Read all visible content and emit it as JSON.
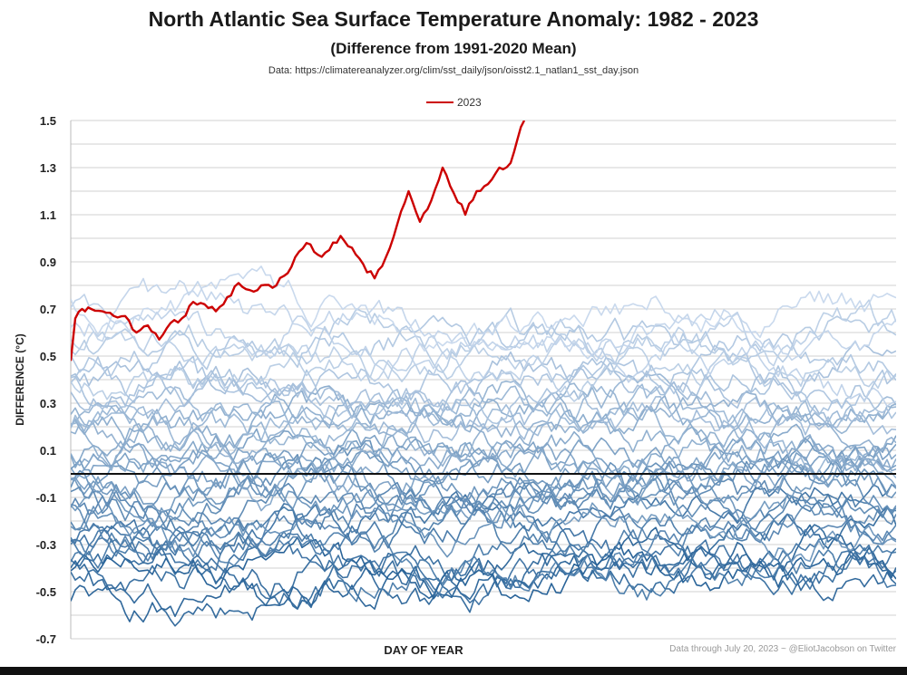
{
  "chart_data": {
    "type": "line",
    "title": "North Atlantic Sea Surface Temperature Anomaly: 1982 - 2023",
    "subtitle": "(Difference from 1991-2020 Mean)",
    "source": "Data: https://climatereanalyzer.org/clim/sst_daily/json/oisst2.1_natlan1_sst_day.json",
    "xlabel": "DAY OF YEAR",
    "ylabel": "DIFFERENCE (°C)",
    "xlim": [
      1,
      365
    ],
    "ylim": [
      -0.7,
      1.5
    ],
    "yticks": [
      "1.5",
      "1.3",
      "1.1",
      "0.9",
      "0.7",
      "0.5",
      "0.3",
      "0.1",
      "-0.1",
      "-0.3",
      "-0.5",
      "-0.7"
    ],
    "grid": true,
    "legend": {
      "position": "top-center",
      "entries": [
        "2023"
      ]
    },
    "zero_line": 0,
    "series": [
      {
        "name": "2023",
        "color": "#cc0000",
        "x": [
          1,
          3,
          6,
          10,
          15,
          20,
          25,
          30,
          35,
          40,
          45,
          50,
          55,
          60,
          65,
          70,
          75,
          80,
          85,
          90,
          95,
          100,
          105,
          110,
          115,
          120,
          125,
          130,
          135,
          140,
          145,
          150,
          155,
          160,
          165,
          170,
          175,
          180,
          185,
          190,
          195,
          198,
          201
        ],
        "values": [
          0.48,
          0.66,
          0.7,
          0.7,
          0.69,
          0.67,
          0.67,
          0.6,
          0.63,
          0.57,
          0.64,
          0.66,
          0.73,
          0.72,
          0.69,
          0.75,
          0.81,
          0.78,
          0.8,
          0.79,
          0.84,
          0.92,
          0.98,
          0.93,
          0.95,
          1.01,
          0.96,
          0.89,
          0.83,
          0.92,
          1.06,
          1.2,
          1.07,
          1.16,
          1.3,
          1.19,
          1.1,
          1.2,
          1.23,
          1.3,
          1.32,
          1.42,
          1.5
        ]
      }
    ],
    "background_series": {
      "years": "1982 - 2022",
      "count": 41,
      "color_range": [
        "#1f5c93",
        "#c6d7ec"
      ],
      "approx_mean_range": [
        -0.45,
        0.62
      ]
    }
  },
  "footer": {
    "credit": "Data through July 20, 2023 ~ @EliotJacobson on Twitter"
  }
}
